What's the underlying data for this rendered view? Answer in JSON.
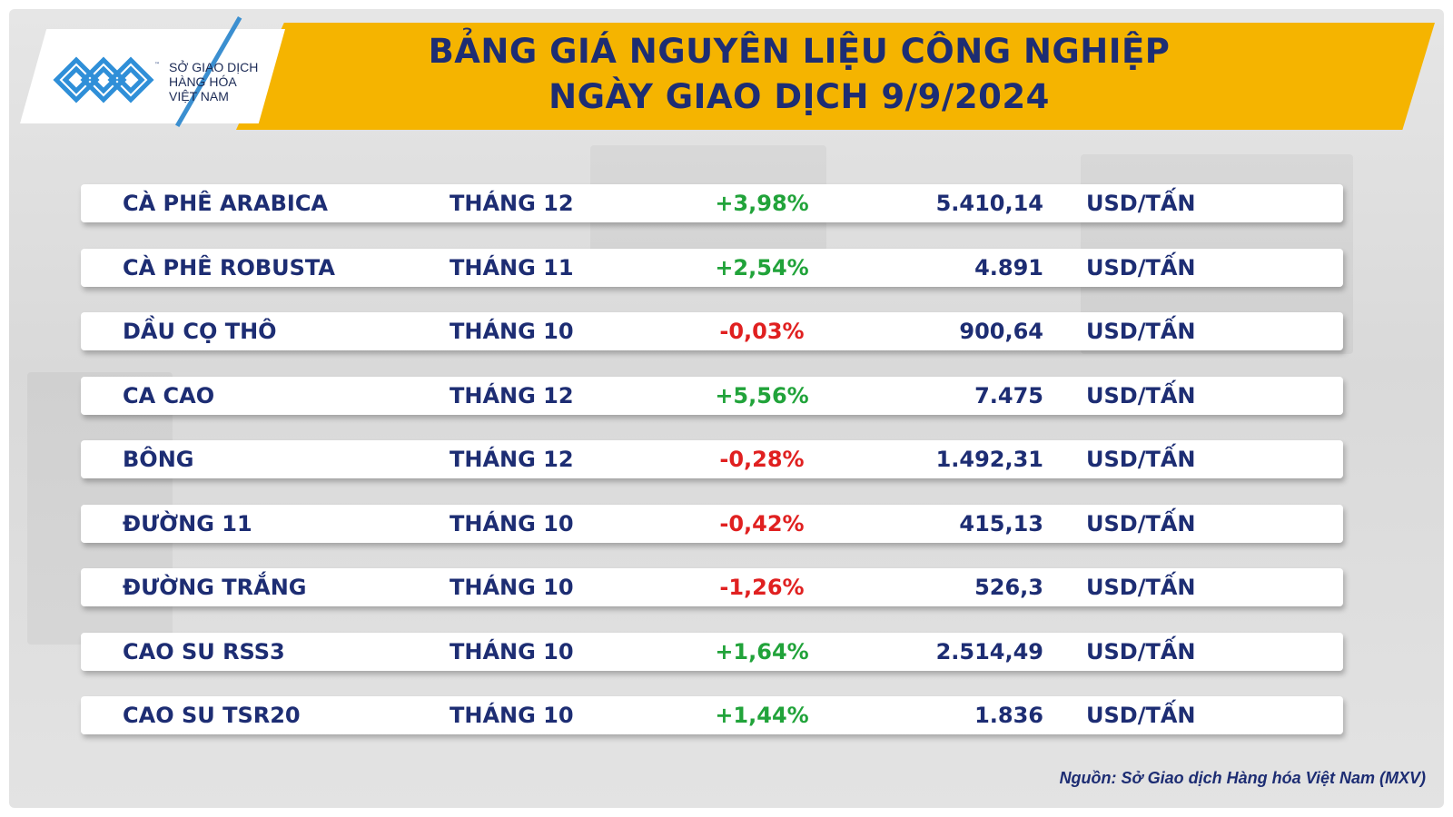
{
  "header": {
    "title_line1": "BẢNG GIÁ NGUYÊN LIỆU CÔNG NGHIỆP",
    "title_line2": "NGÀY GIAO DỊCH 9/9/2024",
    "banner_color": "#f5b400",
    "title_color": "#1d2d73"
  },
  "logo": {
    "line1": "SỞ GIAO DỊCH",
    "line2": "HÀNG HÓA",
    "line3": "VIỆT NAM",
    "tm": "™",
    "color": "#3b8fd0"
  },
  "colors": {
    "positive": "#21a33a",
    "negative": "#e02020"
  },
  "rows": [
    {
      "name": "CÀ PHÊ ARABICA",
      "month": "THÁNG 12",
      "change": "+3,98%",
      "direction": "up",
      "price": "5.410,14",
      "unit": "USD/TẤN"
    },
    {
      "name": "CÀ PHÊ ROBUSTA",
      "month": "THÁNG 11",
      "change": "+2,54%",
      "direction": "up",
      "price": "4.891",
      "unit": "USD/TẤN"
    },
    {
      "name": "DẦU CỌ THÔ",
      "month": "THÁNG 10",
      "change": "-0,03%",
      "direction": "down",
      "price": "900,64",
      "unit": "USD/TẤN"
    },
    {
      "name": "CA CAO",
      "month": "THÁNG 12",
      "change": "+5,56%",
      "direction": "up",
      "price": "7.475",
      "unit": "USD/TẤN"
    },
    {
      "name": "BÔNG",
      "month": "THÁNG 12",
      "change": "-0,28%",
      "direction": "down",
      "price": "1.492,31",
      "unit": "USD/TẤN"
    },
    {
      "name": "ĐƯỜNG 11",
      "month": "THÁNG 10",
      "change": "-0,42%",
      "direction": "down",
      "price": "415,13",
      "unit": "USD/TẤN"
    },
    {
      "name": "ĐƯỜNG TRẮNG",
      "month": "THÁNG 10",
      "change": "-1,26%",
      "direction": "down",
      "price": "526,3",
      "unit": "USD/TẤN"
    },
    {
      "name": "CAO SU RSS3",
      "month": "THÁNG 10",
      "change": "+1,64%",
      "direction": "up",
      "price": "2.514,49",
      "unit": "USD/TẤN"
    },
    {
      "name": "CAO SU TSR20",
      "month": "THÁNG 10",
      "change": "+1,44%",
      "direction": "up",
      "price": "1.836",
      "unit": "USD/TẤN"
    }
  ],
  "footer": {
    "source": "Nguồn: Sở Giao dịch Hàng hóa Việt Nam (MXV)"
  }
}
